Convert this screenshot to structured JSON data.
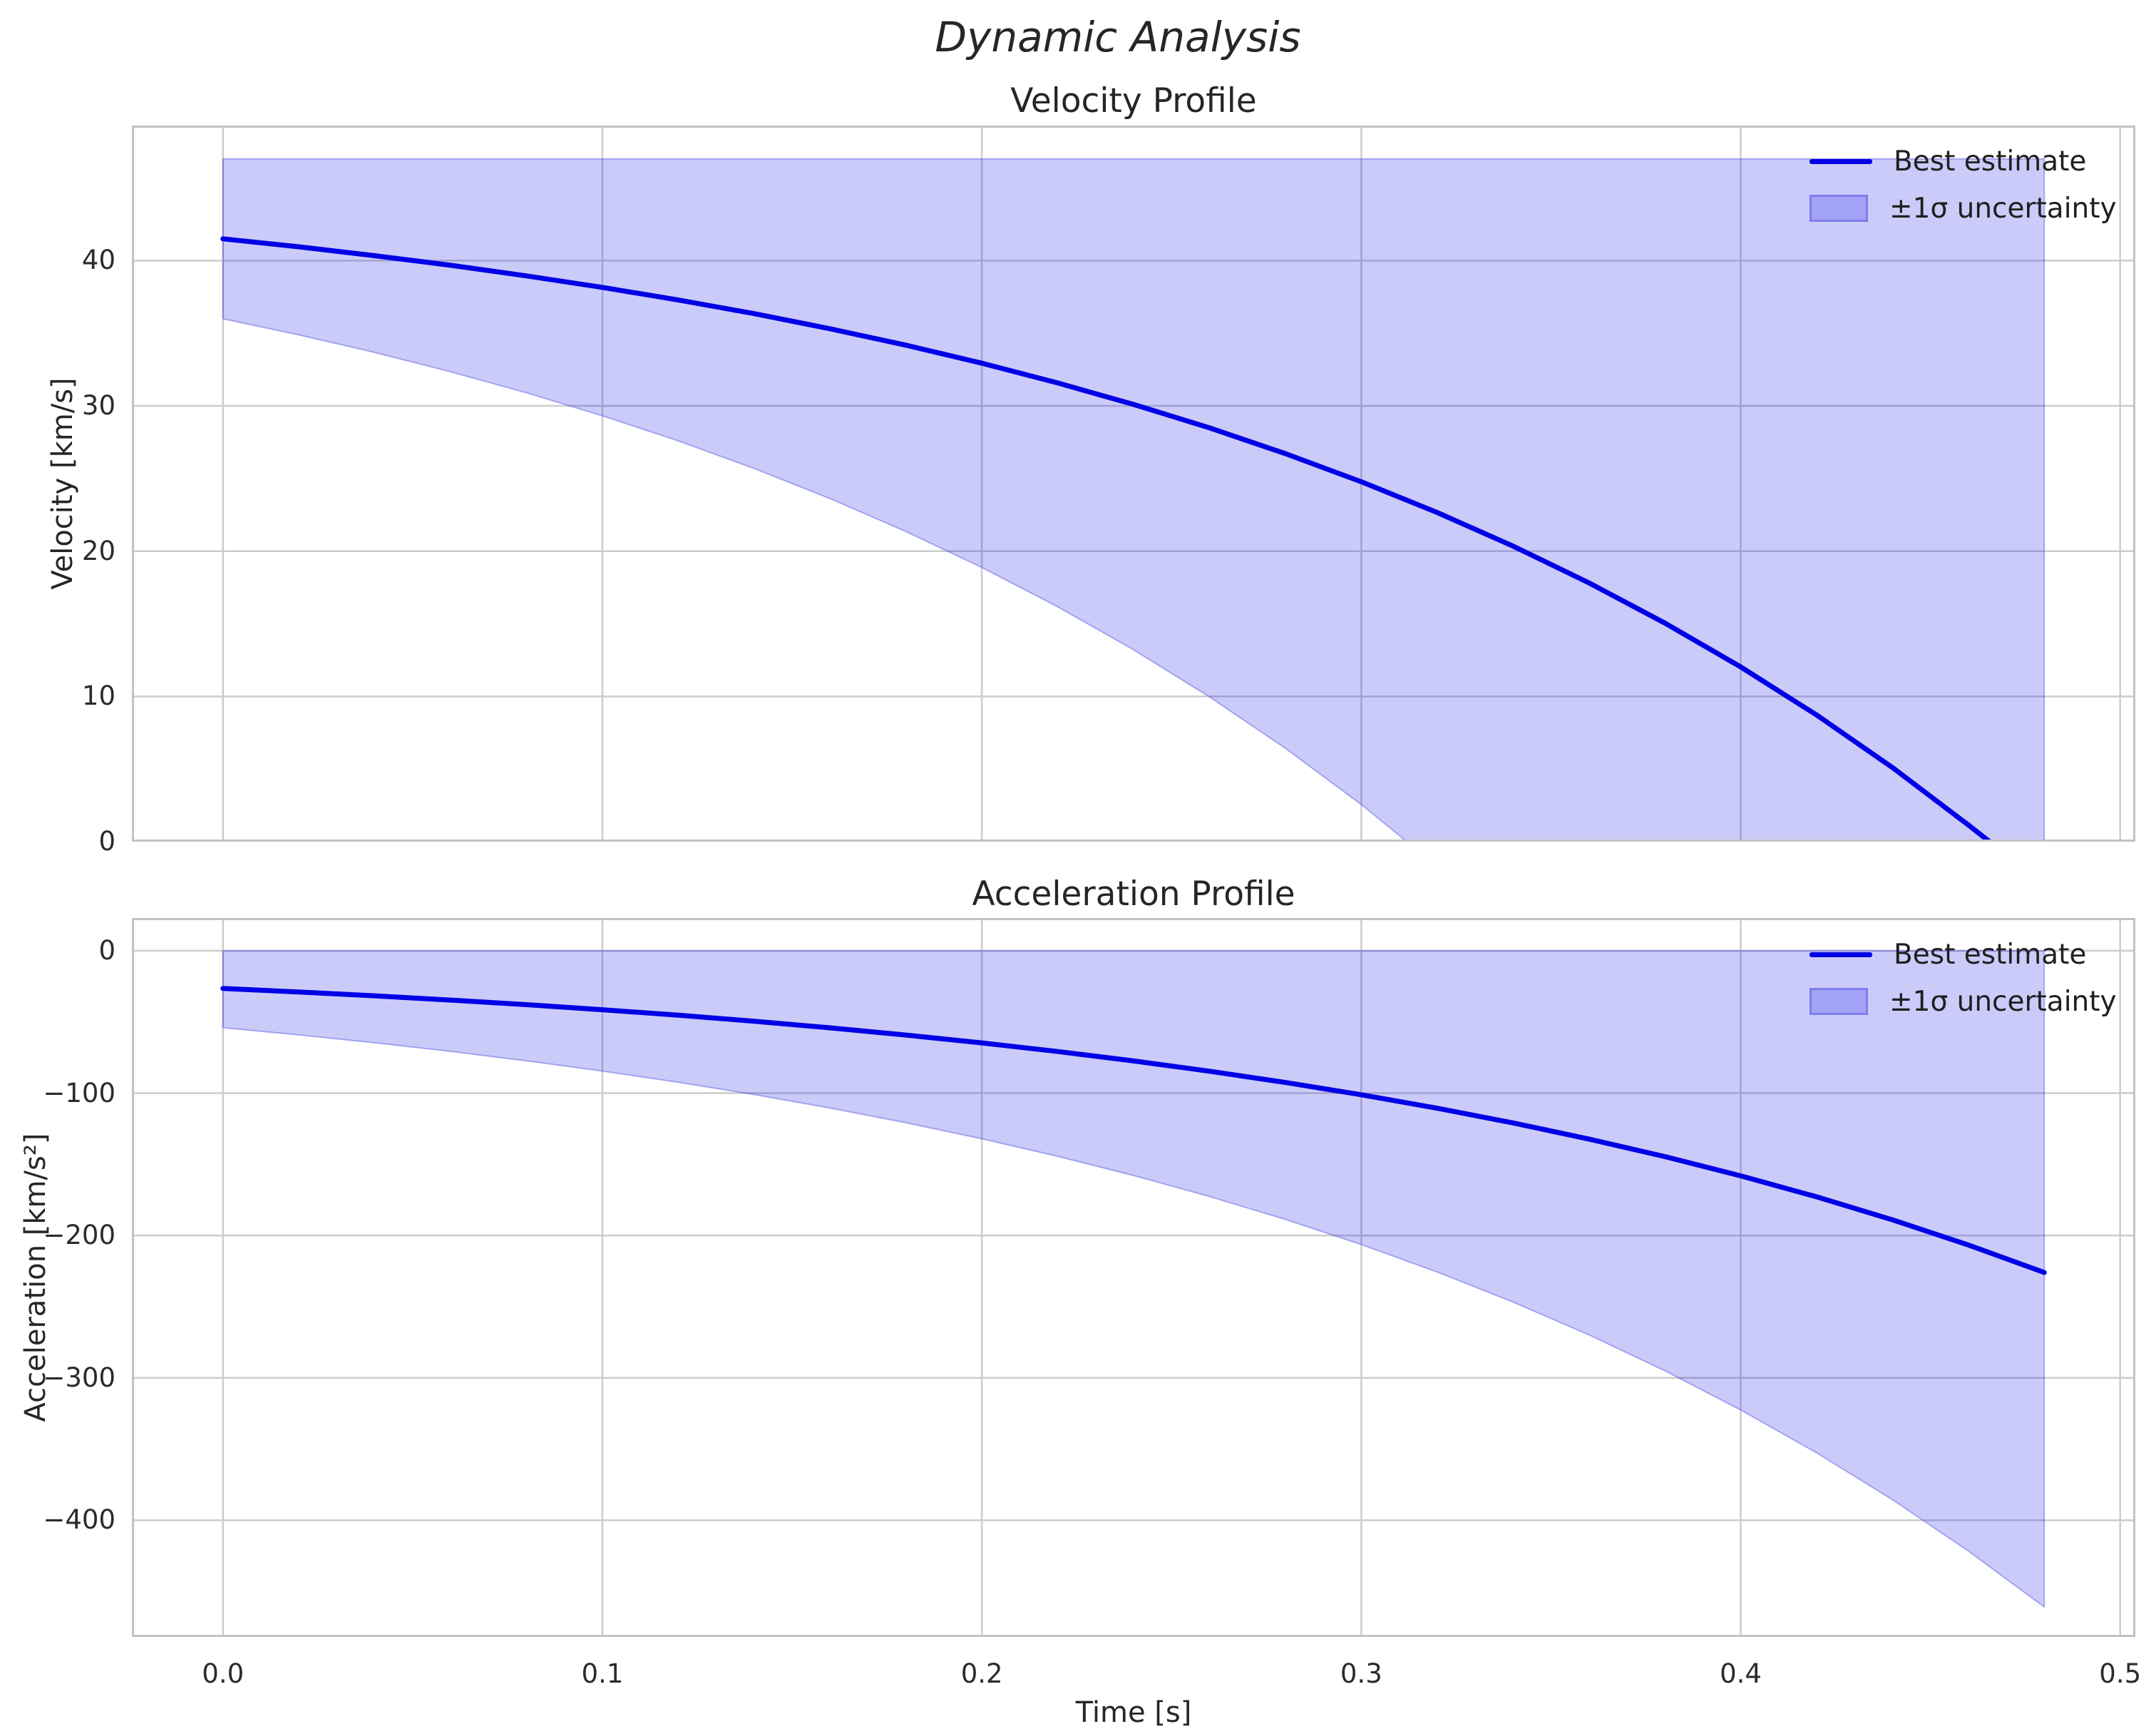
{
  "figure": {
    "suptitle": "Dynamic Analysis",
    "colors": {
      "line": "#0000e6",
      "band_fill": "rgba(10,10,230,0.21)",
      "band_edge": "rgba(70,70,220,0.40)",
      "grid": "#cccccc",
      "spine": "#c2c2c2",
      "text": "#262626"
    }
  },
  "chart_data": [
    {
      "type": "line",
      "title": "Velocity Profile",
      "ylabel": "Velocity [km/s]",
      "xlabel": "",
      "legend": {
        "line_label": "Best estimate",
        "band_label": "±1σ uncertainty"
      },
      "legend_position": "upper right",
      "grid": true,
      "xlim": [
        -0.024,
        0.504
      ],
      "ylim": [
        0,
        49.3
      ],
      "xticks": [
        0.0,
        0.1,
        0.2,
        0.3,
        0.4,
        0.5
      ],
      "yticks": [
        0,
        10,
        20,
        30,
        40
      ],
      "ytick_labels": [
        "0",
        "10",
        "20",
        "30",
        "40"
      ],
      "line_x": [
        0,
        0.02,
        0.04,
        0.06,
        0.08,
        0.1,
        0.12,
        0.14,
        0.16,
        0.18,
        0.2,
        0.22,
        0.24,
        0.26,
        0.28,
        0.3,
        0.32,
        0.34,
        0.36,
        0.38,
        0.4,
        0.42,
        0.44,
        0.46,
        0.4656
      ],
      "line_y": [
        41.5,
        40.95,
        40.34,
        39.68,
        38.95,
        38.16,
        37.29,
        36.35,
        35.31,
        34.18,
        32.94,
        31.58,
        30.1,
        28.49,
        26.71,
        24.78,
        22.66,
        20.35,
        17.82,
        15.05,
        12.03,
        8.72,
        5.1,
        1.15,
        0
      ],
      "band_x": [
        0,
        0.02,
        0.04,
        0.06,
        0.08,
        0.1,
        0.12,
        0.14,
        0.16,
        0.18,
        0.2,
        0.22,
        0.24,
        0.26,
        0.28,
        0.3,
        0.312,
        0.32,
        0.34,
        0.36,
        0.38,
        0.4,
        0.42,
        0.44,
        0.46,
        0.48
      ],
      "band_upper": [
        47,
        47,
        47,
        47,
        47,
        47,
        47,
        47,
        47,
        47,
        47,
        47,
        47,
        47,
        47,
        47,
        47,
        47,
        47,
        47,
        47,
        47,
        47,
        47,
        47,
        47
      ],
      "band_lower": [
        36.0,
        34.89,
        33.68,
        32.35,
        30.9,
        29.32,
        27.59,
        25.69,
        23.62,
        21.35,
        18.88,
        16.17,
        13.21,
        9.97,
        6.43,
        2.56,
        0,
        0,
        0,
        0,
        0,
        0,
        0,
        0,
        0,
        0
      ]
    },
    {
      "type": "line",
      "title": "Acceleration Profile",
      "ylabel": "Acceleration [km/s²]",
      "xlabel": "Time [s]",
      "legend": {
        "line_label": "Best estimate",
        "band_label": "±1σ uncertainty"
      },
      "legend_position": "upper right",
      "grid": true,
      "xlim": [
        -0.024,
        0.504
      ],
      "ylim": [
        -482,
        23
      ],
      "xticks": [
        0.0,
        0.1,
        0.2,
        0.3,
        0.4,
        0.5
      ],
      "xtick_labels": [
        "0.0",
        "0.1",
        "0.2",
        "0.3",
        "0.4",
        "0.5"
      ],
      "yticks": [
        0,
        -100,
        -200,
        -300,
        -400
      ],
      "ytick_labels": [
        "0",
        "−100",
        "−200",
        "−300",
        "−400"
      ],
      "line_x": [
        0,
        0.02,
        0.04,
        0.06,
        0.08,
        0.1,
        0.12,
        0.14,
        0.16,
        0.18,
        0.2,
        0.22,
        0.24,
        0.26,
        0.28,
        0.3,
        0.32,
        0.34,
        0.36,
        0.38,
        0.4,
        0.42,
        0.44,
        0.46,
        0.48
      ],
      "line_y": [
        -26.5,
        -28.98,
        -31.68,
        -34.64,
        -37.88,
        -41.42,
        -45.28,
        -49.51,
        -54.14,
        -59.2,
        -64.73,
        -70.77,
        -77.38,
        -84.61,
        -92.52,
        -101.16,
        -110.61,
        -120.94,
        -132.24,
        -144.59,
        -158.1,
        -172.86,
        -189.01,
        -206.67,
        -225.97
      ],
      "band_x": [
        0,
        0.02,
        0.04,
        0.06,
        0.08,
        0.1,
        0.12,
        0.14,
        0.16,
        0.18,
        0.2,
        0.22,
        0.24,
        0.26,
        0.28,
        0.3,
        0.32,
        0.34,
        0.36,
        0.38,
        0.4,
        0.42,
        0.44,
        0.46,
        0.48
      ],
      "band_upper": [
        0,
        0,
        0,
        0,
        0,
        0,
        0,
        0,
        0,
        0,
        0,
        0,
        0,
        0,
        0,
        0,
        0,
        0,
        0,
        0,
        0,
        0,
        0,
        0,
        0
      ],
      "band_lower": [
        -54.06,
        -59.12,
        -64.63,
        -70.67,
        -77.28,
        -84.5,
        -92.37,
        -101.0,
        -110.45,
        -120.77,
        -132.05,
        -144.37,
        -157.86,
        -172.6,
        -188.74,
        -206.37,
        -225.64,
        -246.72,
        -269.77,
        -294.96,
        -322.52,
        -352.63,
        -385.58,
        -421.61,
        -460.98
      ]
    }
  ]
}
